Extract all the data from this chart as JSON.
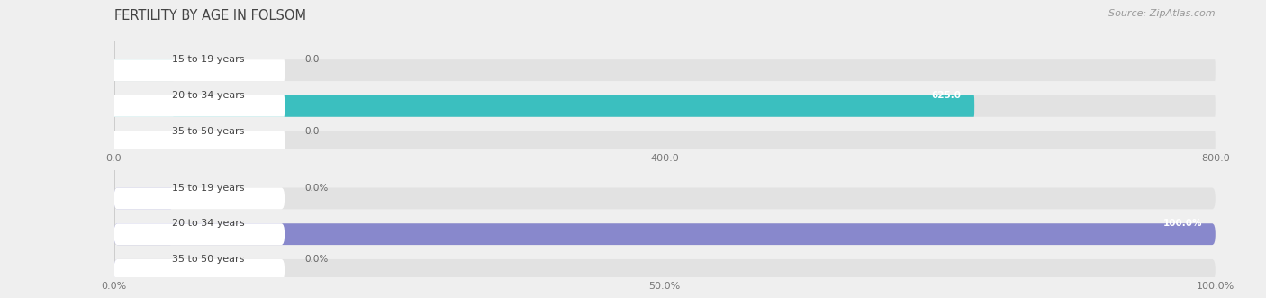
{
  "title": "FERTILITY BY AGE IN FOLSOM",
  "source": "Source: ZipAtlas.com",
  "chart1": {
    "categories": [
      "15 to 19 years",
      "20 to 34 years",
      "35 to 50 years"
    ],
    "values": [
      0.0,
      625.0,
      0.0
    ],
    "xlim": [
      0,
      800
    ],
    "xticks": [
      0.0,
      400.0,
      800.0
    ],
    "bar_color": "#3bbfbf",
    "bar_color_light": "#a0d8d8",
    "label_color_inside": "#ffffff",
    "label_color_outside": "#666666",
    "value_threshold": 50
  },
  "chart2": {
    "categories": [
      "15 to 19 years",
      "20 to 34 years",
      "35 to 50 years"
    ],
    "values": [
      0.0,
      100.0,
      0.0
    ],
    "xlim": [
      0,
      100
    ],
    "xticks": [
      0.0,
      50.0,
      100.0
    ],
    "xtick_labels": [
      "0.0%",
      "50.0%",
      "100.0%"
    ],
    "bar_color": "#8888cc",
    "bar_color_light": "#b0b0dd",
    "label_color_inside": "#ffffff",
    "label_color_outside": "#666666",
    "value_threshold": 5
  },
  "bg_color": "#efefef",
  "bar_bg_color": "#e2e2e2",
  "label_bg_color": "#ffffff",
  "label_text_color": "#444444",
  "title_color": "#444444",
  "source_color": "#999999",
  "title_fontsize": 10.5,
  "source_fontsize": 8,
  "tick_fontsize": 8,
  "label_fontsize": 8,
  "value_fontsize": 7.5
}
